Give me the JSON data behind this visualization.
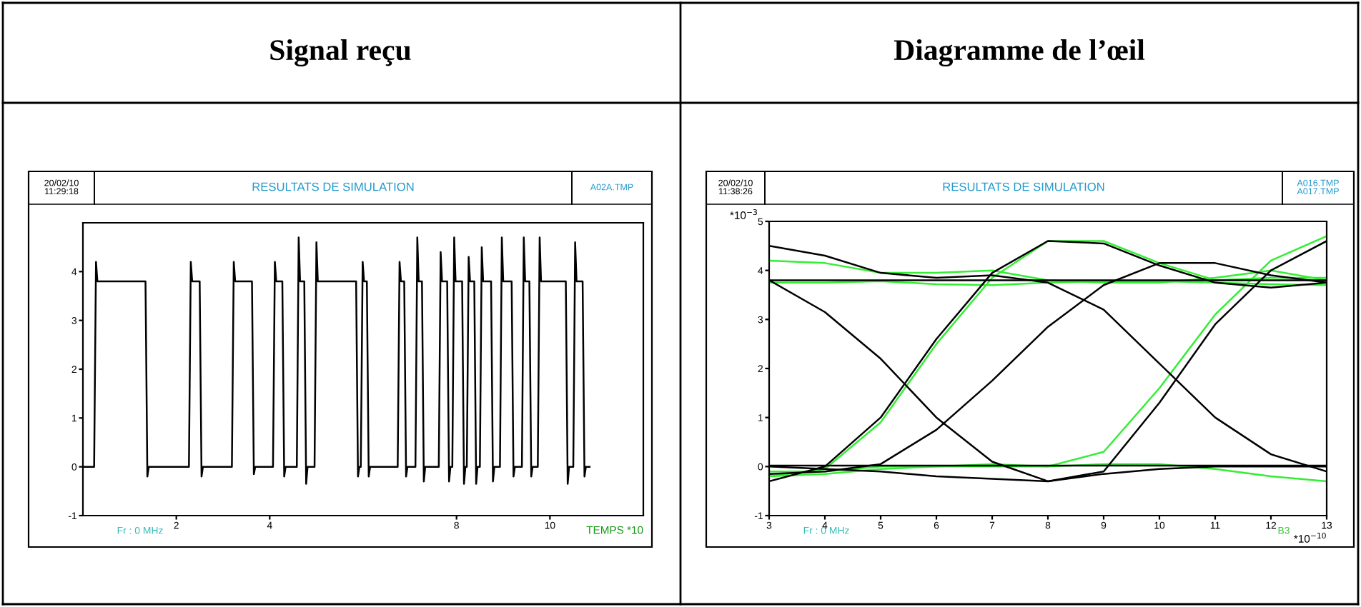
{
  "chart_data": [
    {
      "type": "line",
      "title": "Signal reçu",
      "xlabel": "TEMPS *10",
      "xlim": [
        0,
        12
      ],
      "xticks": [
        2,
        4,
        8,
        10
      ],
      "ylim": [
        -1,
        5
      ],
      "yticks": [
        -1,
        0,
        1,
        2,
        3,
        4
      ],
      "grid": false,
      "legend": false,
      "annotations": [
        "20/02/10\n11:29:18",
        "RESULTATS DE SIMULATION",
        "A02A.TMP",
        "Fr : 0 MHz"
      ],
      "series": [
        {
          "color": "#000000",
          "x": [
            0,
            0.2,
            0.24,
            0.28,
            0.31,
            1.34,
            1.38,
            1.41,
            2.27,
            2.31,
            2.34,
            2.5,
            2.54,
            2.57,
            3.19,
            3.23,
            3.26,
            3.62,
            3.66,
            3.69,
            4.07,
            4.11,
            4.14,
            4.27,
            4.31,
            4.34,
            4.58,
            4.62,
            4.65,
            4.74,
            4.78,
            4.81,
            4.96,
            5.0,
            5.03,
            5.85,
            5.89,
            5.92,
            5.95,
            5.99,
            6.02,
            6.08,
            6.12,
            6.15,
            6.74,
            6.78,
            6.81,
            6.88,
            6.92,
            6.95,
            7.12,
            7.16,
            7.19,
            7.26,
            7.3,
            7.33,
            7.62,
            7.66,
            7.69,
            7.8,
            7.84,
            7.87,
            7.91,
            7.95,
            7.98,
            8.12,
            8.16,
            8.19,
            8.22,
            8.26,
            8.29,
            8.38,
            8.42,
            8.45,
            8.5,
            8.54,
            8.57,
            8.74,
            8.78,
            8.81,
            8.93,
            8.97,
            9.0,
            9.18,
            9.22,
            9.25,
            9.4,
            9.44,
            9.47,
            9.56,
            9.6,
            9.63,
            9.74,
            9.78,
            9.81,
            10.34,
            10.38,
            10.41,
            10.5,
            10.54,
            10.57,
            10.7,
            10.74,
            10.77,
            10.85
          ],
          "values": [
            0,
            0,
            0,
            4.2,
            3.8,
            3.8,
            -0.2,
            0,
            0,
            4.2,
            3.8,
            3.8,
            -0.2,
            0,
            0,
            4.2,
            3.8,
            3.8,
            -0.15,
            0,
            0,
            4.2,
            3.8,
            3.8,
            -0.2,
            0,
            0,
            4.7,
            3.8,
            3.8,
            -0.35,
            0,
            0,
            4.6,
            3.8,
            3.8,
            -0.2,
            0,
            0,
            4.2,
            3.8,
            3.8,
            -0.2,
            0,
            0,
            4.2,
            3.8,
            3.8,
            -0.2,
            0,
            0,
            4.7,
            3.8,
            3.8,
            -0.3,
            0,
            0,
            4.4,
            3.8,
            3.8,
            -0.3,
            0,
            0,
            4.7,
            3.8,
            3.8,
            -0.35,
            0,
            0,
            4.3,
            3.8,
            3.8,
            -0.35,
            0,
            0,
            4.5,
            3.8,
            3.8,
            -0.3,
            0,
            0,
            4.7,
            3.8,
            3.8,
            -0.2,
            0,
            0,
            4.7,
            3.8,
            3.8,
            -0.2,
            0,
            0,
            4.7,
            3.8,
            3.8,
            -0.35,
            0,
            0,
            4.6,
            3.8,
            3.8,
            -0.2,
            0,
            0
          ]
        }
      ]
    },
    {
      "type": "line",
      "title": "Diagramme de l’œil",
      "xlabel": "*10$^{−10}$",
      "ylabel": "*10$^{−3}$",
      "xlim": [
        3,
        13
      ],
      "xticks": [
        3,
        4,
        5,
        6,
        7,
        8,
        9,
        10,
        11,
        12,
        13
      ],
      "ylim": [
        -1,
        5
      ],
      "yticks": [
        -1,
        0,
        1,
        2,
        3,
        4,
        5
      ],
      "grid": false,
      "legend": false,
      "annotations": [
        "20/02/10\n11:38:26",
        "RESULTATS DE SIMULATION",
        "A016.TMP\nA017.TMP",
        "Fr : 0 MHz",
        "B3"
      ],
      "x": [
        3,
        4,
        5,
        6,
        7,
        8,
        9,
        10,
        11,
        12,
        13
      ],
      "series": [
        {
          "color": "#33ee33",
          "values": [
            4.2,
            4.15,
            3.95,
            3.95,
            4.0,
            3.8,
            3.75,
            3.75,
            3.85,
            4.0,
            3.8
          ]
        },
        {
          "color": "#33ee33",
          "values": [
            3.75,
            3.75,
            3.78,
            3.72,
            3.7,
            3.75,
            3.78,
            3.78,
            3.75,
            3.72,
            3.7
          ]
        },
        {
          "color": "#33ee33",
          "values": [
            -0.2,
            -0.15,
            -0.05,
            0,
            0.05,
            0,
            0.05,
            0.05,
            -0.05,
            -0.2,
            -0.3
          ]
        },
        {
          "color": "#33ee33",
          "values": [
            -0.2,
            -0.05,
            0.9,
            2.5,
            3.85,
            4.6,
            4.6,
            4.15,
            3.8,
            3.85,
            3.85
          ]
        },
        {
          "color": "#33ee33",
          "values": [
            -0.1,
            -0.1,
            0,
            0,
            0,
            0,
            0.3,
            1.6,
            3.1,
            4.2,
            4.7
          ]
        },
        {
          "color": "#000000",
          "values": [
            3.8,
            3.8,
            3.8,
            3.8,
            3.8,
            3.8,
            3.8,
            3.8,
            3.8,
            3.8,
            3.8
          ]
        },
        {
          "color": "#000000",
          "values": [
            0.02,
            0.02,
            0.02,
            0.02,
            0.02,
            0.02,
            0.02,
            0.02,
            0.02,
            0.02,
            0.02
          ]
        },
        {
          "color": "#000000",
          "values": [
            3.8,
            3.15,
            2.2,
            1.0,
            0.1,
            -0.3,
            -0.15,
            -0.05,
            0,
            0,
            0
          ]
        },
        {
          "color": "#000000",
          "values": [
            -0.3,
            0,
            1.0,
            2.6,
            3.95,
            4.6,
            4.55,
            4.1,
            3.75,
            3.65,
            3.75
          ]
        },
        {
          "color": "#000000",
          "values": [
            -0.15,
            -0.1,
            0.05,
            0.75,
            1.75,
            2.85,
            3.7,
            4.15,
            4.15,
            3.9,
            3.75
          ]
        },
        {
          "color": "#000000",
          "values": [
            4.5,
            4.3,
            3.95,
            3.85,
            3.9,
            3.75,
            3.2,
            2.1,
            1.0,
            0.25,
            -0.1
          ]
        },
        {
          "color": "#000000",
          "values": [
            0,
            -0.05,
            -0.1,
            -0.2,
            -0.25,
            -0.3,
            -0.1,
            1.3,
            2.9,
            4.0,
            4.6
          ]
        }
      ]
    }
  ]
}
